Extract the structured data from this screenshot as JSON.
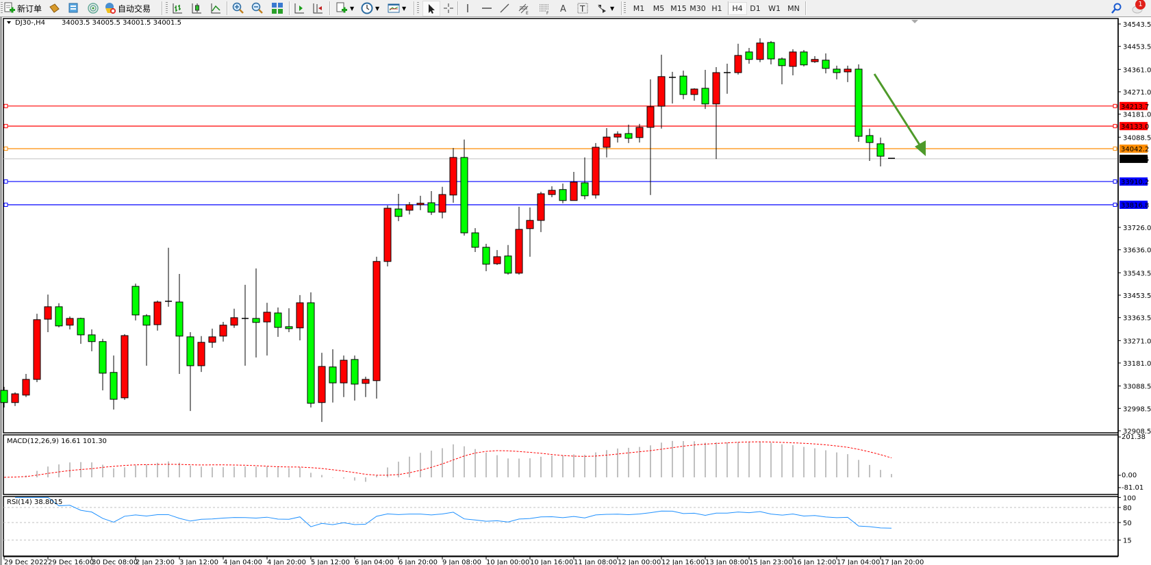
{
  "toolbar": {
    "new_order": "新订单",
    "auto_trading": "自动交易",
    "timeframes": [
      "M1",
      "M5",
      "M15",
      "M30",
      "H1",
      "H4",
      "D1",
      "W1",
      "MN"
    ],
    "active_timeframe": "H4",
    "notification_count": "1"
  },
  "chart": {
    "symbol": "DJ30-,H4",
    "ohlc": "34003.5 34005.5 34001.5 34001.5",
    "colors": {
      "up": "#ff0000",
      "down": "#00ff00",
      "wick": "#000000",
      "arrow": "#4e9a2a"
    },
    "price_axis": [
      "34543.5",
      "34453.5",
      "34361.0",
      "34271.0",
      "34181.0",
      "34088.5",
      "33726.0",
      "33636.0",
      "33543.5",
      "33453.5",
      "33363.5",
      "33271.0",
      "33181.0",
      "33088.5",
      "32998.5",
      "32908.5"
    ],
    "levels": [
      {
        "price": "34213.7",
        "color": "#ff0000"
      },
      {
        "price": "34133.0",
        "color": "#ff0000"
      },
      {
        "price": "34042.2",
        "color": "#ff8c00"
      },
      {
        "price": "33910.2",
        "color": "#0000ff"
      },
      {
        "price": "33816.8",
        "color": "#0000ff"
      }
    ],
    "bid": {
      "price": "34001.5",
      "color": "#c0c0c0"
    },
    "candles": [
      [
        33071,
        33085,
        33002,
        33022
      ],
      [
        33022,
        33063,
        33008,
        33057
      ],
      [
        33052,
        33137,
        33044,
        33115
      ],
      [
        33115,
        33379,
        33104,
        33355
      ],
      [
        33357,
        33456,
        33305,
        33407
      ],
      [
        33407,
        33421,
        33324,
        33330
      ],
      [
        33333,
        33368,
        33316,
        33360
      ],
      [
        33360,
        33363,
        33258,
        33294
      ],
      [
        33294,
        33316,
        33228,
        33267
      ],
      [
        33267,
        33278,
        33071,
        33140
      ],
      [
        33143,
        33211,
        32994,
        33035
      ],
      [
        33041,
        33297,
        33033,
        33291
      ],
      [
        33489,
        33500,
        33352,
        33374
      ],
      [
        33371,
        33377,
        33170,
        33333
      ],
      [
        33335,
        33432,
        33311,
        33426
      ],
      [
        33429,
        33644,
        33407,
        33429
      ],
      [
        33426,
        33539,
        33137,
        33289
      ],
      [
        33286,
        33305,
        32988,
        33170
      ],
      [
        33170,
        33289,
        33145,
        33264
      ],
      [
        33264,
        33319,
        33242,
        33286
      ],
      [
        33289,
        33346,
        33267,
        33333
      ],
      [
        33333,
        33399,
        33322,
        33363
      ],
      [
        33360,
        33495,
        33170,
        33360
      ],
      [
        33360,
        33561,
        33203,
        33344
      ],
      [
        33346,
        33423,
        33211,
        33385
      ],
      [
        33382,
        33404,
        33286,
        33324
      ],
      [
        33327,
        33401,
        33305,
        33319
      ],
      [
        33322,
        33454,
        33272,
        33423
      ],
      [
        33423,
        33465,
        33002,
        33019
      ],
      [
        33022,
        33222,
        32944,
        33167
      ],
      [
        33165,
        33236,
        33022,
        33101
      ],
      [
        33101,
        33211,
        33044,
        33192
      ],
      [
        33195,
        33211,
        33030,
        33096
      ],
      [
        33099,
        33126,
        33044,
        33115
      ],
      [
        33110,
        33608,
        33038,
        33589
      ],
      [
        33589,
        33814,
        33569,
        33803
      ],
      [
        33800,
        33861,
        33751,
        33770
      ],
      [
        33795,
        33828,
        33778,
        33817
      ],
      [
        33817,
        33853,
        33795,
        33823
      ],
      [
        33825,
        33872,
        33776,
        33787
      ],
      [
        33787,
        33889,
        33762,
        33858
      ],
      [
        33856,
        34045,
        33825,
        34007
      ],
      [
        34007,
        34079,
        33693,
        33704
      ],
      [
        33704,
        33723,
        33627,
        33646
      ],
      [
        33646,
        33660,
        33550,
        33578
      ],
      [
        33580,
        33635,
        33575,
        33608
      ],
      [
        33611,
        33655,
        33536,
        33542
      ],
      [
        33542,
        33809,
        33536,
        33718
      ],
      [
        33721,
        33806,
        33608,
        33754
      ],
      [
        33754,
        33869,
        33707,
        33861
      ],
      [
        33858,
        33891,
        33847,
        33875
      ],
      [
        33878,
        33902,
        33823,
        33834
      ],
      [
        33834,
        33949,
        33834,
        33908
      ],
      [
        33905,
        34007,
        33839,
        33853
      ],
      [
        33856,
        34065,
        33842,
        34048
      ],
      [
        34048,
        34125,
        34007,
        34089
      ],
      [
        34089,
        34112,
        34067,
        34101
      ],
      [
        34103,
        34139,
        34065,
        34084
      ],
      [
        34087,
        34142,
        34067,
        34128
      ],
      [
        34128,
        34321,
        33856,
        34211
      ],
      [
        34213,
        34420,
        34123,
        34332
      ],
      [
        34329,
        34351,
        34224,
        34329
      ],
      [
        34334,
        34356,
        34241,
        34260
      ],
      [
        34260,
        34285,
        34235,
        34282
      ],
      [
        34285,
        34359,
        34202,
        34222
      ],
      [
        34222,
        34370,
        34001,
        34348
      ],
      [
        34348,
        34384,
        34263,
        34348
      ],
      [
        34348,
        34464,
        34340,
        34417
      ],
      [
        34431,
        34447,
        34384,
        34401
      ],
      [
        34401,
        34486,
        34390,
        34467
      ],
      [
        34469,
        34475,
        34381,
        34403
      ],
      [
        34403,
        34409,
        34301,
        34376
      ],
      [
        34373,
        34442,
        34337,
        34431
      ],
      [
        34431,
        34439,
        34373,
        34379
      ],
      [
        34392,
        34414,
        34387,
        34401
      ],
      [
        34398,
        34425,
        34345,
        34365
      ],
      [
        34362,
        34376,
        34321,
        34348
      ],
      [
        34351,
        34376,
        34310,
        34362
      ],
      [
        34362,
        34381,
        34070,
        34092
      ],
      [
        34095,
        34123,
        33993,
        34067
      ],
      [
        34062,
        34087,
        33971,
        34012
      ],
      [
        34003.5,
        34005.5,
        34001.5,
        34001.5
      ]
    ],
    "time_labels": [
      "29 Dec 2022",
      "29 Dec 16:00",
      "30 Dec 08:00",
      "2 Jan 23:00",
      "3 Jan 12:00",
      "4 Jan 04:00",
      "4 Jan 20:00",
      "5 Jan 12:00",
      "6 Jan 04:00",
      "6 Jan 20:00",
      "9 Jan 08:00",
      "10 Jan 00:00",
      "10 Jan 16:00",
      "11 Jan 08:00",
      "12 Jan 00:00",
      "12 Jan 16:00",
      "13 Jan 08:00",
      "15 Jan 23:00",
      "16 Jan 12:00",
      "17 Jan 04:00",
      "17 Jan 20:00"
    ]
  },
  "macd": {
    "label": "MACD(12,26,9) 16.61 101.30",
    "axis": [
      "201.38",
      "0.00",
      "-81.01"
    ],
    "colors": {
      "histogram": "#c0c0c0",
      "signal": "#ff0000"
    }
  },
  "rsi": {
    "label": "RSI(14) 38.8015",
    "axis": [
      "100",
      "80",
      "50",
      "15"
    ],
    "color": "#1e90ff"
  }
}
